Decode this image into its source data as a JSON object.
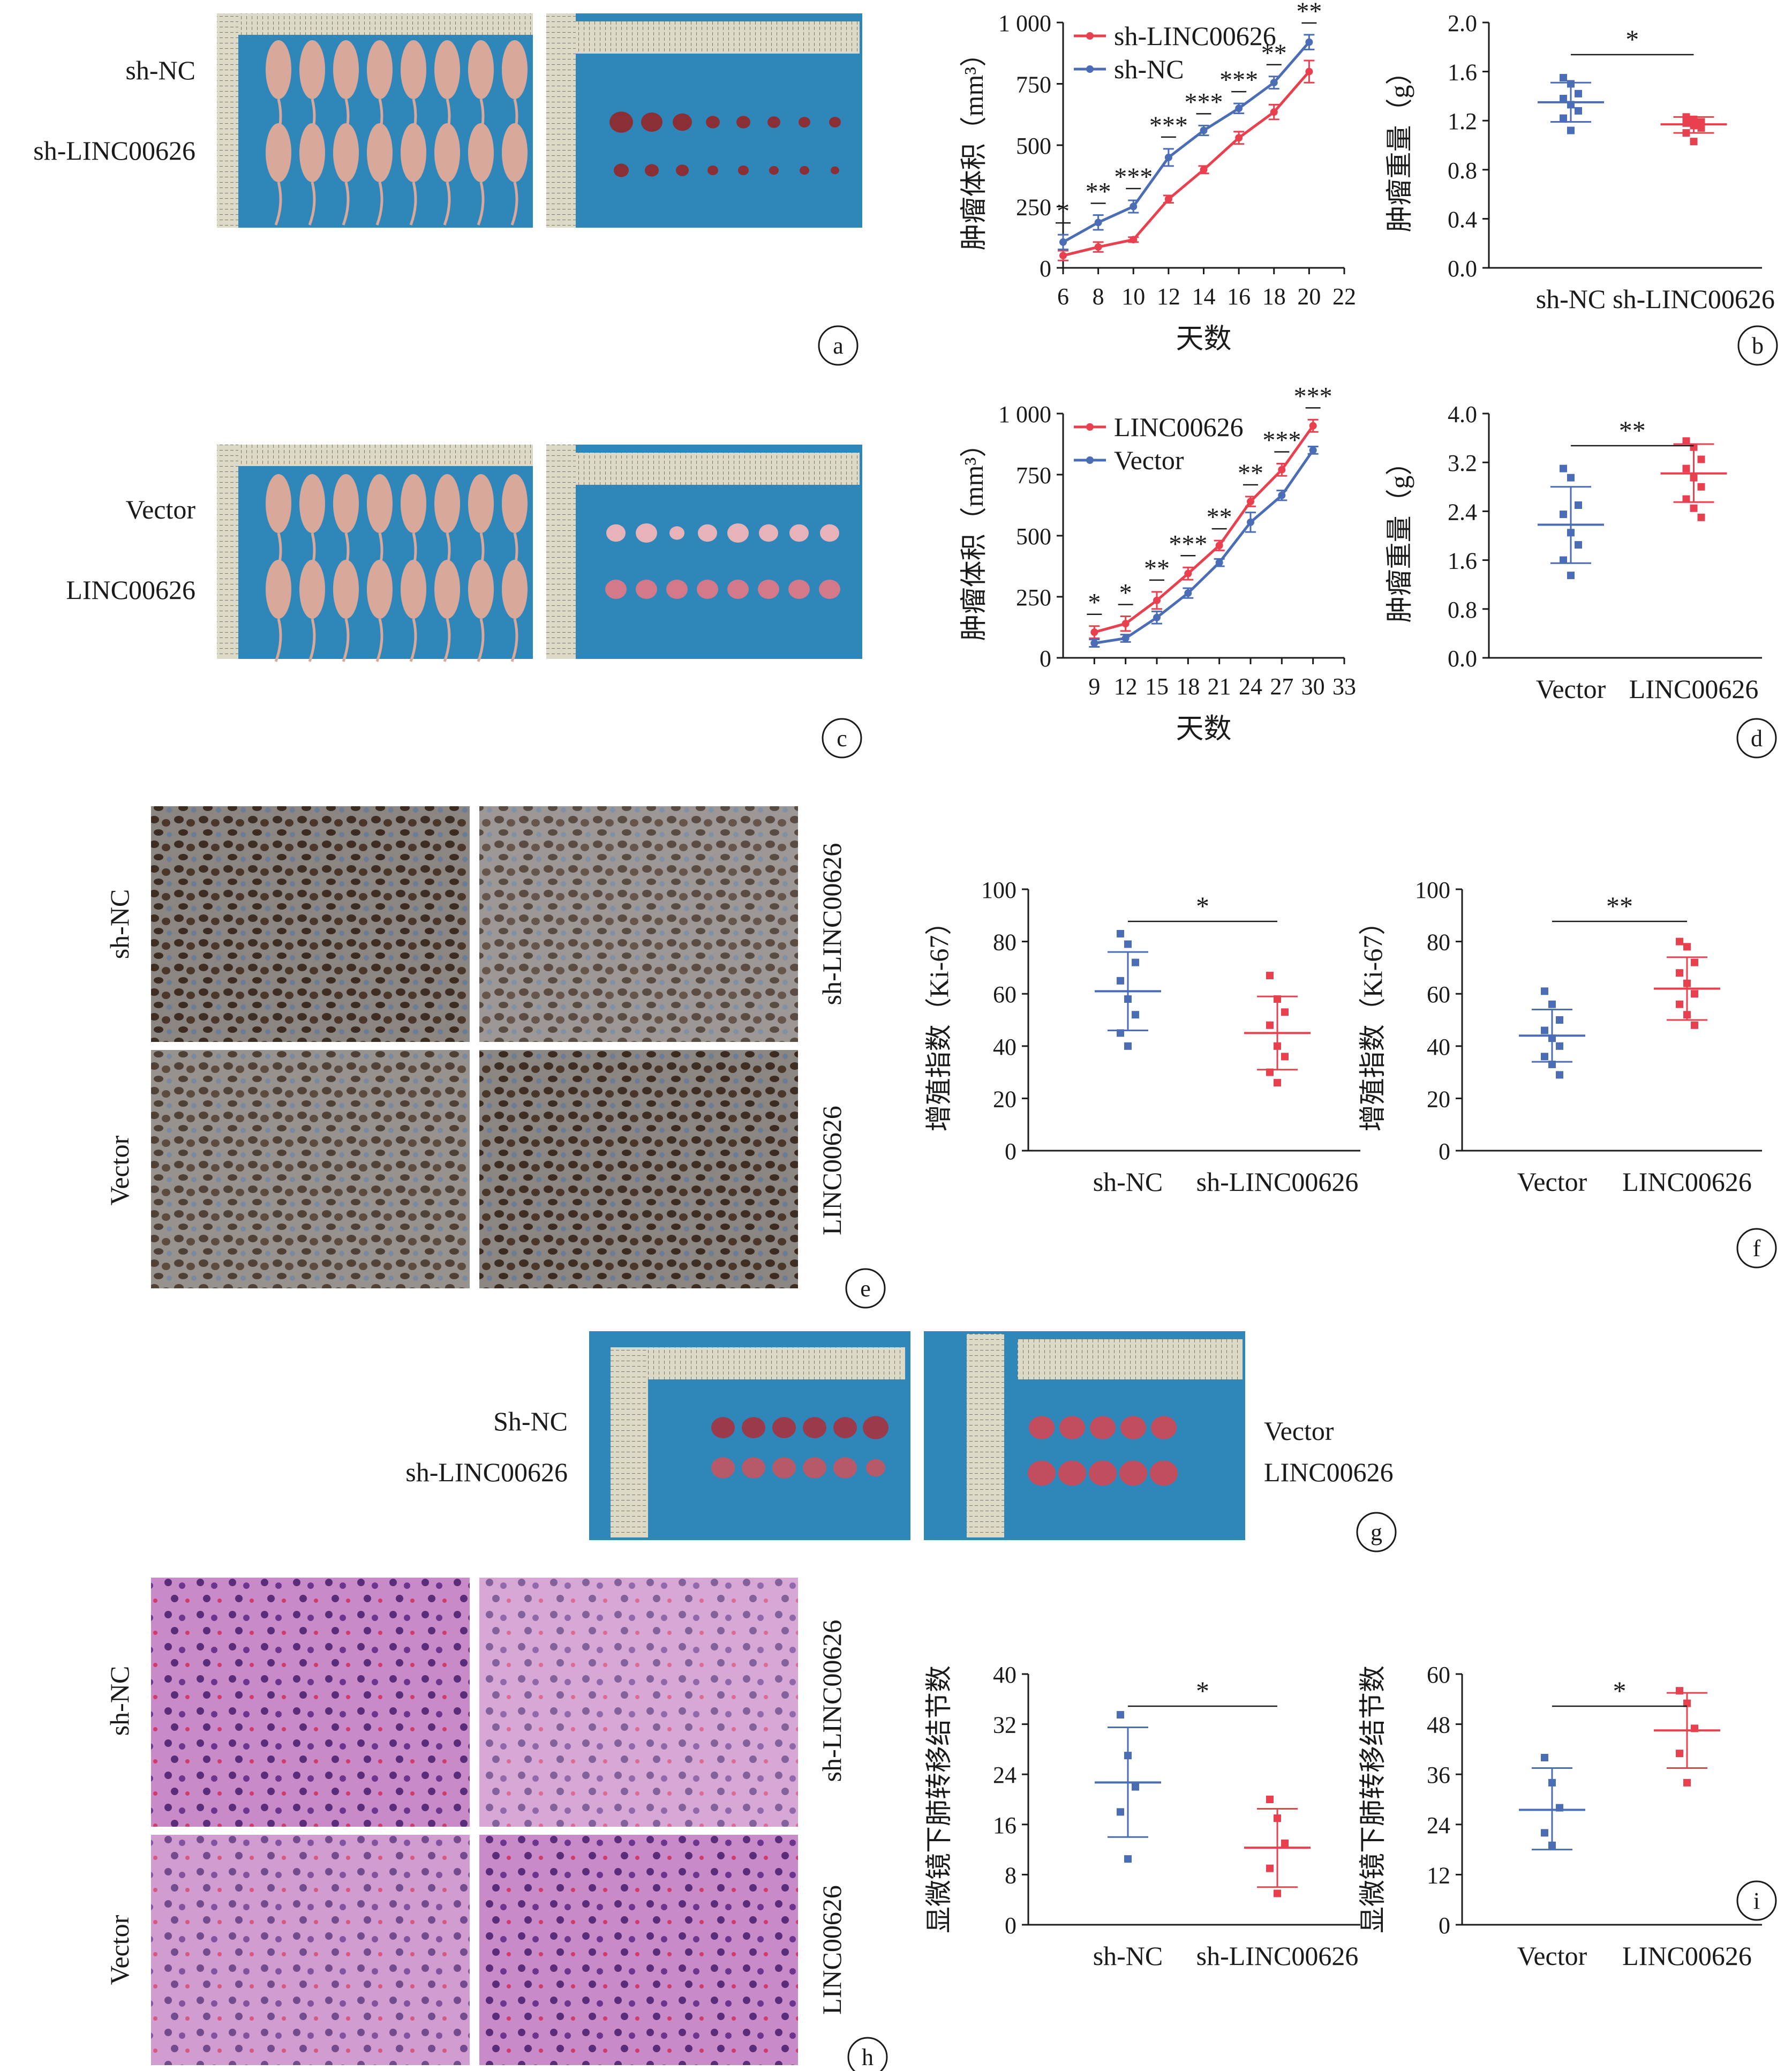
{
  "labels": {
    "panel_letters": [
      "a",
      "b",
      "c",
      "d",
      "e",
      "f",
      "g",
      "h",
      "i"
    ],
    "row_a": {
      "top": "sh-NC",
      "bottom": "sh-LINC00626"
    },
    "row_c": {
      "top": "Vector",
      "bottom": "LINC00626"
    },
    "row_e": {
      "left_top": "sh-NC",
      "left_bottom": "Vector",
      "right_top": "sh-LINC00626",
      "right_bottom": "LINC00626"
    },
    "row_g": {
      "left_top": "Sh-NC",
      "left_bottom": "sh-LINC00626",
      "right_top": "Vector",
      "right_bottom": "LINC00626"
    },
    "row_h": {
      "left_top": "sh-NC",
      "left_bottom": "Vector",
      "right_top": "sh-LINC00626",
      "right_bottom": "LINC00626"
    }
  },
  "colors": {
    "red": "#e8404f",
    "blue": "#4a6db5",
    "ruler": "#d9d6c4",
    "cloth": "#2f86b8",
    "mouse": "#d8a89a",
    "tumor": "#b03a48"
  },
  "chart_data": [
    {
      "id": "a",
      "type": "line",
      "xlabel": "天数",
      "ylabel": "肿瘤体积（mm³）",
      "xticks": [
        6,
        8,
        10,
        12,
        14,
        16,
        18,
        20,
        22
      ],
      "yticks": [
        0,
        250,
        500,
        750,
        1000
      ],
      "ytick_labels": [
        "0",
        "250",
        "500",
        "750",
        "1 000"
      ],
      "xlim": [
        6,
        22
      ],
      "ylim": [
        0,
        1000
      ],
      "legend_position": "top-left",
      "x": [
        6,
        8,
        10,
        12,
        14,
        16,
        18,
        20
      ],
      "series": [
        {
          "name": "sh-LINC00626",
          "color": "#e8404f",
          "values": [
            50,
            85,
            115,
            280,
            400,
            530,
            635,
            800
          ],
          "err": [
            20,
            20,
            10,
            15,
            15,
            25,
            30,
            45
          ]
        },
        {
          "name": "sh-NC",
          "color": "#4a6db5",
          "values": [
            105,
            185,
            250,
            450,
            560,
            650,
            755,
            920
          ],
          "err": [
            30,
            30,
            25,
            35,
            20,
            20,
            25,
            30
          ]
        }
      ],
      "significance": [
        "*",
        "**",
        "***",
        "***",
        "***",
        "***",
        "**",
        "**"
      ]
    },
    {
      "id": "b",
      "type": "scatter",
      "ylabel": "肿瘤重量（g）",
      "categories": [
        "sh-NC",
        "sh-LINC00626"
      ],
      "yticks": [
        0.0,
        0.4,
        0.8,
        1.2,
        1.6,
        2.0
      ],
      "ytick_labels": [
        "0.0",
        "0.4",
        "0.8",
        "1.2",
        "1.6",
        "2.0"
      ],
      "ylim": [
        0,
        2.0
      ],
      "marker": "square",
      "groups": [
        {
          "color": "#4a6db5",
          "mean": 1.35,
          "sd_low": 1.19,
          "sd_high": 1.51,
          "points": [
            1.55,
            1.5,
            1.42,
            1.38,
            1.33,
            1.28,
            1.22,
            1.12
          ]
        },
        {
          "color": "#e8404f",
          "mean": 1.17,
          "sd_low": 1.1,
          "sd_high": 1.23,
          "points": [
            1.23,
            1.21,
            1.19,
            1.18,
            1.16,
            1.14,
            1.1,
            1.03
          ]
        }
      ],
      "significance": "*"
    },
    {
      "id": "c",
      "type": "line",
      "xlabel": "天数",
      "ylabel": "肿瘤体积（mm³）",
      "xticks": [
        9,
        12,
        15,
        18,
        21,
        24,
        27,
        30,
        33
      ],
      "yticks": [
        0,
        250,
        500,
        750,
        1000
      ],
      "ytick_labels": [
        "0",
        "250",
        "500",
        "750",
        "1 000"
      ],
      "xlim": [
        6,
        33
      ],
      "ylim": [
        0,
        1000
      ],
      "legend_position": "top-left",
      "x": [
        9,
        12,
        15,
        18,
        21,
        24,
        27,
        30
      ],
      "series": [
        {
          "name": "LINC00626",
          "color": "#e8404f",
          "values": [
            105,
            140,
            235,
            345,
            460,
            640,
            770,
            950
          ],
          "err": [
            25,
            30,
            35,
            25,
            20,
            20,
            25,
            25
          ]
        },
        {
          "name": "Vector",
          "color": "#4a6db5",
          "values": [
            60,
            80,
            165,
            265,
            390,
            555,
            665,
            850
          ],
          "err": [
            15,
            15,
            25,
            20,
            15,
            40,
            20,
            15
          ]
        }
      ],
      "significance": [
        "*",
        "*",
        "**",
        "***",
        "**",
        "**",
        "***",
        "***"
      ]
    },
    {
      "id": "d",
      "type": "scatter",
      "ylabel": "肿瘤重量（g）",
      "categories": [
        "Vector",
        "LINC00626"
      ],
      "yticks": [
        0.0,
        0.8,
        1.6,
        2.4,
        3.2,
        4.0
      ],
      "ytick_labels": [
        "0.0",
        "0.8",
        "1.6",
        "2.4",
        "3.2",
        "4.0"
      ],
      "ylim": [
        0,
        4.0
      ],
      "marker": "square",
      "groups": [
        {
          "color": "#4a6db5",
          "mean": 2.18,
          "sd_low": 1.55,
          "sd_high": 2.8,
          "points": [
            3.1,
            2.95,
            2.5,
            2.35,
            2.05,
            1.85,
            1.6,
            1.35
          ]
        },
        {
          "color": "#e8404f",
          "mean": 3.02,
          "sd_low": 2.55,
          "sd_high": 3.5,
          "points": [
            3.55,
            3.45,
            3.25,
            3.1,
            2.95,
            2.8,
            2.6,
            2.45,
            2.3
          ]
        }
      ],
      "significance": "**"
    },
    {
      "id": "e1",
      "type": "scatter",
      "ylabel": "增殖指数（Ki-67）",
      "categories": [
        "sh-NC",
        "sh-LINC00626"
      ],
      "yticks": [
        0,
        20,
        40,
        60,
        80,
        100
      ],
      "ytick_labels": [
        "0",
        "20",
        "40",
        "60",
        "80",
        "100"
      ],
      "ylim": [
        0,
        100
      ],
      "marker": "square",
      "groups": [
        {
          "color": "#4a6db5",
          "mean": 61,
          "sd_low": 46,
          "sd_high": 76,
          "points": [
            83,
            79,
            72,
            65,
            58,
            52,
            45,
            40
          ]
        },
        {
          "color": "#e8404f",
          "mean": 45,
          "sd_low": 31,
          "sd_high": 59,
          "points": [
            67,
            58,
            53,
            48,
            40,
            36,
            30,
            26
          ]
        }
      ],
      "significance": "*"
    },
    {
      "id": "f",
      "type": "scatter",
      "ylabel": "增殖指数（Ki-67）",
      "categories": [
        "Vector",
        "LINC00626"
      ],
      "yticks": [
        0,
        20,
        40,
        60,
        80,
        100
      ],
      "ytick_labels": [
        "0",
        "20",
        "40",
        "60",
        "80",
        "100"
      ],
      "ylim": [
        0,
        100
      ],
      "marker": "square",
      "groups": [
        {
          "color": "#4a6db5",
          "mean": 44,
          "sd_low": 34,
          "sd_high": 54,
          "points": [
            61,
            56,
            50,
            46,
            43,
            40,
            36,
            33,
            29
          ]
        },
        {
          "color": "#e8404f",
          "mean": 62,
          "sd_low": 50,
          "sd_high": 74,
          "points": [
            80,
            78,
            72,
            68,
            64,
            60,
            56,
            52,
            48
          ]
        }
      ],
      "significance": "**"
    },
    {
      "id": "i1",
      "type": "scatter",
      "ylabel": "显微镜下肺转移结节数",
      "categories": [
        "sh-NC",
        "sh-LINC00626"
      ],
      "yticks": [
        0,
        8,
        16,
        24,
        32,
        40
      ],
      "ytick_labels": [
        "0",
        "8",
        "16",
        "24",
        "32",
        "40"
      ],
      "ylim": [
        0,
        40
      ],
      "marker": "square",
      "groups": [
        {
          "color": "#4a6db5",
          "mean": 22.7,
          "sd_low": 14,
          "sd_high": 31.5,
          "points": [
            33.5,
            27,
            22,
            18,
            10.5
          ]
        },
        {
          "color": "#e8404f",
          "mean": 12.3,
          "sd_low": 6,
          "sd_high": 18.5,
          "points": [
            20,
            17,
            13,
            9,
            5
          ]
        }
      ],
      "significance": "*"
    },
    {
      "id": "i2",
      "type": "scatter",
      "ylabel": "显微镜下肺转移结节数",
      "categories": [
        "Vector",
        "LINC00626"
      ],
      "yticks": [
        0,
        12,
        24,
        36,
        48,
        60
      ],
      "ytick_labels": [
        "0",
        "12",
        "24",
        "36",
        "48",
        "60"
      ],
      "ylim": [
        0,
        60
      ],
      "marker": "square",
      "groups": [
        {
          "color": "#4a6db5",
          "mean": 27.5,
          "sd_low": 18,
          "sd_high": 37.5,
          "points": [
            40,
            34,
            28,
            22,
            19
          ]
        },
        {
          "color": "#e8404f",
          "mean": 46.5,
          "sd_low": 37.5,
          "sd_high": 55.5,
          "points": [
            56,
            53,
            47,
            41,
            34
          ]
        }
      ],
      "significance": "*"
    }
  ]
}
